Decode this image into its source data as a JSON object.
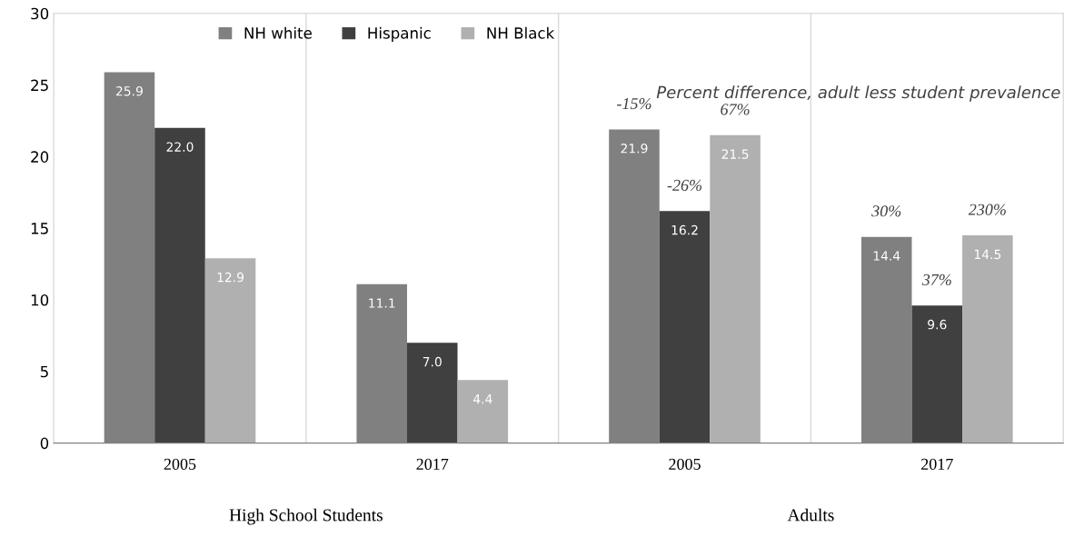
{
  "chart_data": {
    "type": "bar",
    "categories": [
      "2005",
      "2017",
      "2005",
      "2017"
    ],
    "series": [
      {
        "name": "NH white",
        "color": "#808080",
        "values": [
          25.9,
          11.1,
          21.9,
          14.4
        ],
        "value_labels": [
          "25.9",
          "11.1",
          "21.9",
          "14.4"
        ]
      },
      {
        "name": "Hispanic",
        "color": "#404040",
        "values": [
          22,
          7,
          16.2,
          9.6
        ],
        "value_labels": [
          "22.0",
          "7.0",
          "16.2",
          "9.6"
        ]
      },
      {
        "name": "NH Black",
        "color": "#b0b0b0",
        "values": [
          12.9,
          4.4,
          21.5,
          14.5
        ],
        "value_labels": [
          "12.9",
          "4.4",
          "21.5",
          "14.5"
        ]
      }
    ],
    "ylim": [
      0,
      30
    ],
    "yticks": [
      0,
      5,
      10,
      15,
      20,
      25,
      30
    ],
    "grid": false,
    "legend": "top",
    "annotations": [
      "Percent difference, adult less student prevalence",
      "-15%",
      "-26%",
      "67%",
      "30%",
      "37%",
      "230%",
      "High School Students",
      "Adults"
    ]
  }
}
